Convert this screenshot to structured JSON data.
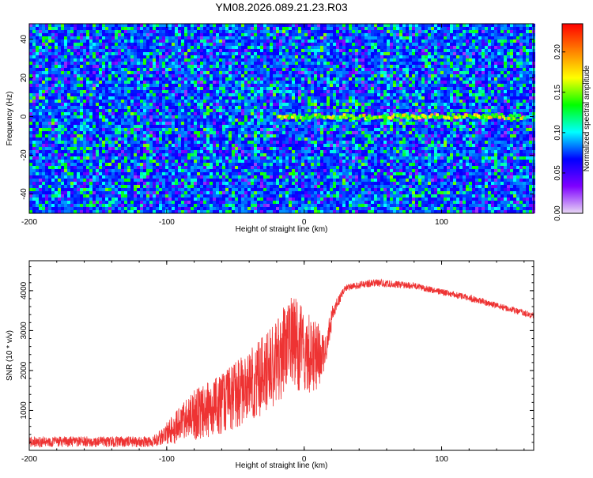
{
  "title": "YM08.2026.089.21.23.R03",
  "chart_data": [
    {
      "type": "heatmap",
      "title": "",
      "xlabel": "Height of straight line (km)",
      "ylabel": "Frequency (Hz)",
      "xlim": [
        -200,
        167
      ],
      "ylim": [
        -50,
        48
      ],
      "xticks": [
        -200,
        -100,
        0,
        100
      ],
      "xtick_labels": [
        "-200",
        "-100",
        "0",
        "100"
      ],
      "yticks": [
        -40,
        -20,
        0,
        20,
        40
      ],
      "ytick_labels": [
        "-40",
        "-20",
        "0",
        "20",
        "40"
      ],
      "colorbar": {
        "label": "Normalized spectral amplitude",
        "range": [
          0.0,
          0.235
        ],
        "ticks": [
          0.0,
          0.05,
          0.1,
          0.15,
          0.2
        ],
        "tick_labels": [
          "0.00",
          "0.05",
          "0.10",
          "0.15",
          "0.20"
        ],
        "colors": [
          "#e8d8f4",
          "#7f00ff",
          "#0000ff",
          "#00ffff",
          "#00ff00",
          "#ffff00",
          "#ff8000",
          "#ff0000"
        ]
      },
      "background_level": 0.05,
      "signal_track": {
        "x_start": -20,
        "x_end": 160,
        "frequency_hz": 0,
        "peak_amplitude": 0.21
      }
    },
    {
      "type": "line",
      "title": "",
      "xlabel": "Height of straight line (km)",
      "ylabel": "SNR (10 * v/v)",
      "xlim": [
        -200,
        167
      ],
      "ylim": [
        0,
        4750
      ],
      "xticks": [
        -200,
        -100,
        0,
        100
      ],
      "xtick_labels": [
        "-200",
        "-100",
        "0",
        "100"
      ],
      "yticks": [
        1000,
        2000,
        3000,
        4000
      ],
      "ytick_labels": [
        "1000",
        "2000",
        "3000",
        "4000"
      ],
      "line_color": "#ee3333",
      "envelope": {
        "x": [
          -200,
          -110,
          -100,
          -90,
          -80,
          -60,
          -40,
          -20,
          -10,
          0,
          10,
          15,
          20,
          30,
          50,
          80,
          120,
          167
        ],
        "upper": [
          350,
          350,
          700,
          1100,
          1500,
          1900,
          2500,
          3200,
          4000,
          3500,
          3200,
          2800,
          3600,
          4150,
          4300,
          4200,
          3900,
          3450
        ],
        "lower": [
          80,
          80,
          120,
          180,
          250,
          400,
          700,
          1100,
          1600,
          1400,
          1500,
          2000,
          3000,
          3900,
          4000,
          3950,
          3650,
          3200
        ]
      }
    }
  ]
}
